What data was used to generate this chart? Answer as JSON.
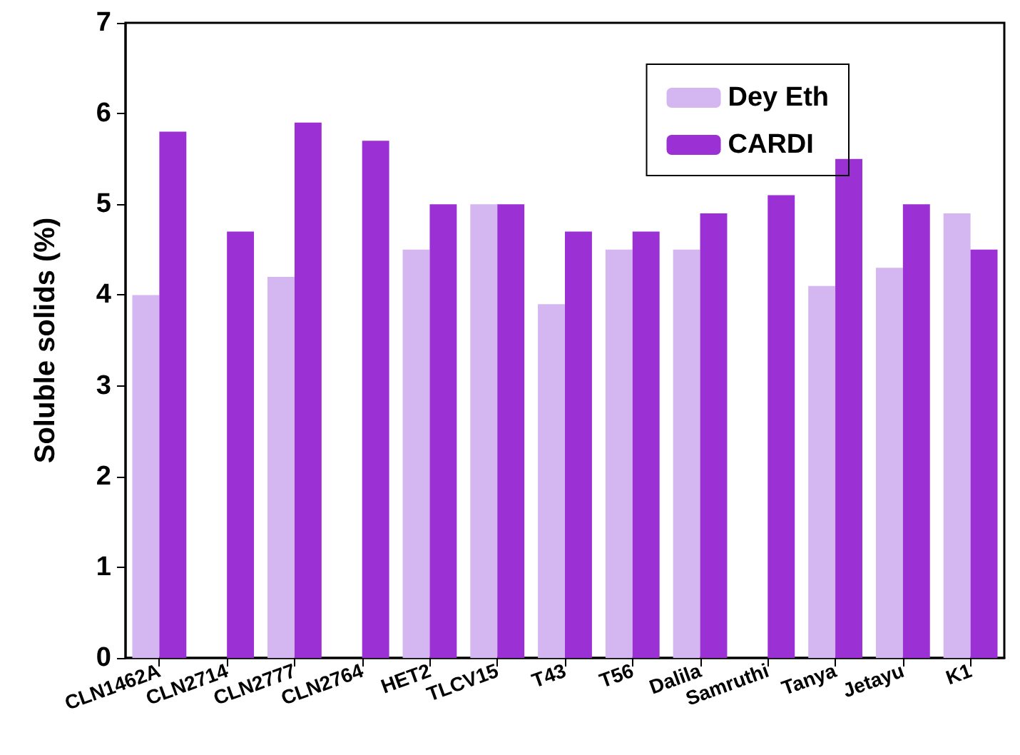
{
  "chart_data": {
    "type": "bar",
    "ylabel": "Soluble solids (%)",
    "categories": [
      "CLN1462A",
      "CLN2714",
      "CLN2777",
      "CLN2764",
      "HET2",
      "TLCV15",
      "T43",
      "T56",
      "Dalila",
      "Samruthi",
      "Tanya",
      "Jetayu",
      "K1"
    ],
    "series": [
      {
        "name": "Dey Eth",
        "color": "#d4b6f0",
        "values": [
          4.0,
          null,
          4.2,
          null,
          4.5,
          5.0,
          3.9,
          4.5,
          4.5,
          null,
          4.1,
          4.3,
          4.9
        ]
      },
      {
        "name": "CARDI",
        "color": "#9b30d4",
        "values": [
          5.8,
          4.7,
          5.9,
          5.7,
          5.0,
          5.0,
          4.7,
          4.7,
          4.9,
          5.1,
          5.5,
          5.0,
          4.5
        ]
      }
    ],
    "ylim": [
      0,
      7
    ],
    "yticks": [
      0,
      1,
      2,
      3,
      4,
      5,
      6,
      7
    ],
    "grid": false,
    "legend": "top right"
  }
}
